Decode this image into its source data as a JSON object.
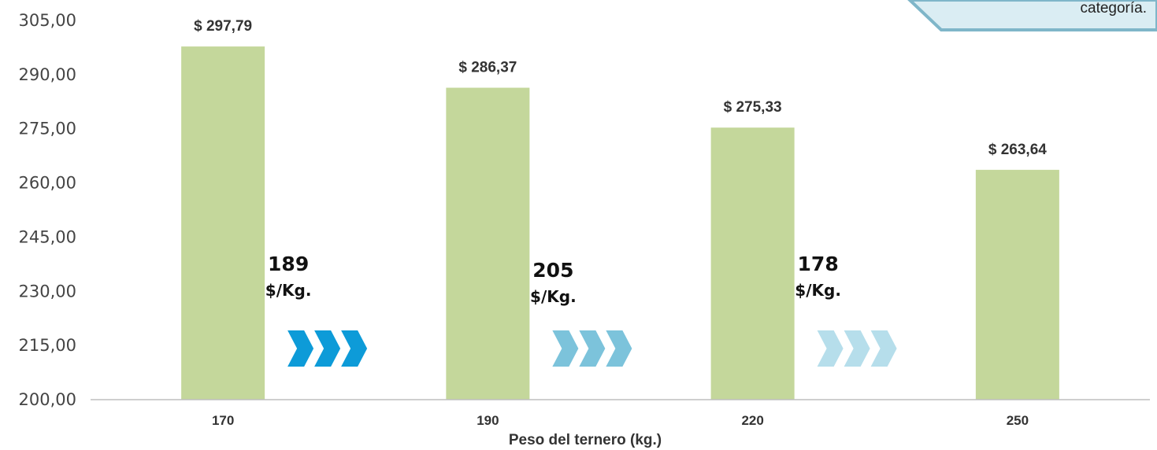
{
  "chart_data": {
    "type": "bar",
    "categories": [
      "170",
      "190",
      "220",
      "250"
    ],
    "values": [
      297.79,
      286.37,
      275.33,
      263.64
    ],
    "data_labels": [
      "$ 297,79",
      "$ 286,37",
      "$ 275,33",
      "$ 263,64"
    ],
    "xlabel": "Peso del ternero (kg.)",
    "ylabel": "",
    "ylim": [
      200,
      305
    ],
    "yticks": [
      {
        "value": 305,
        "label": "305,00"
      },
      {
        "value": 290,
        "label": "290,00"
      },
      {
        "value": 275,
        "label": "275,00"
      },
      {
        "value": 260,
        "label": "260,00"
      },
      {
        "value": 245,
        "label": "245,00"
      },
      {
        "value": 230,
        "label": "230,00"
      },
      {
        "value": 215,
        "label": "215,00"
      },
      {
        "value": 200,
        "label": "200,00"
      }
    ],
    "grid": false,
    "bar_color": "#c4d79b",
    "annotations": [
      {
        "value": "189",
        "unit": "$/Kg.",
        "arrow_color": "#0d9bd8"
      },
      {
        "value": "205",
        "unit": "$/Kg.",
        "arrow_color": "#7cc3db"
      },
      {
        "value": "178",
        "unit": "$/Kg.",
        "arrow_color": "#b6deeb"
      }
    ],
    "callout_text": "categoría."
  }
}
